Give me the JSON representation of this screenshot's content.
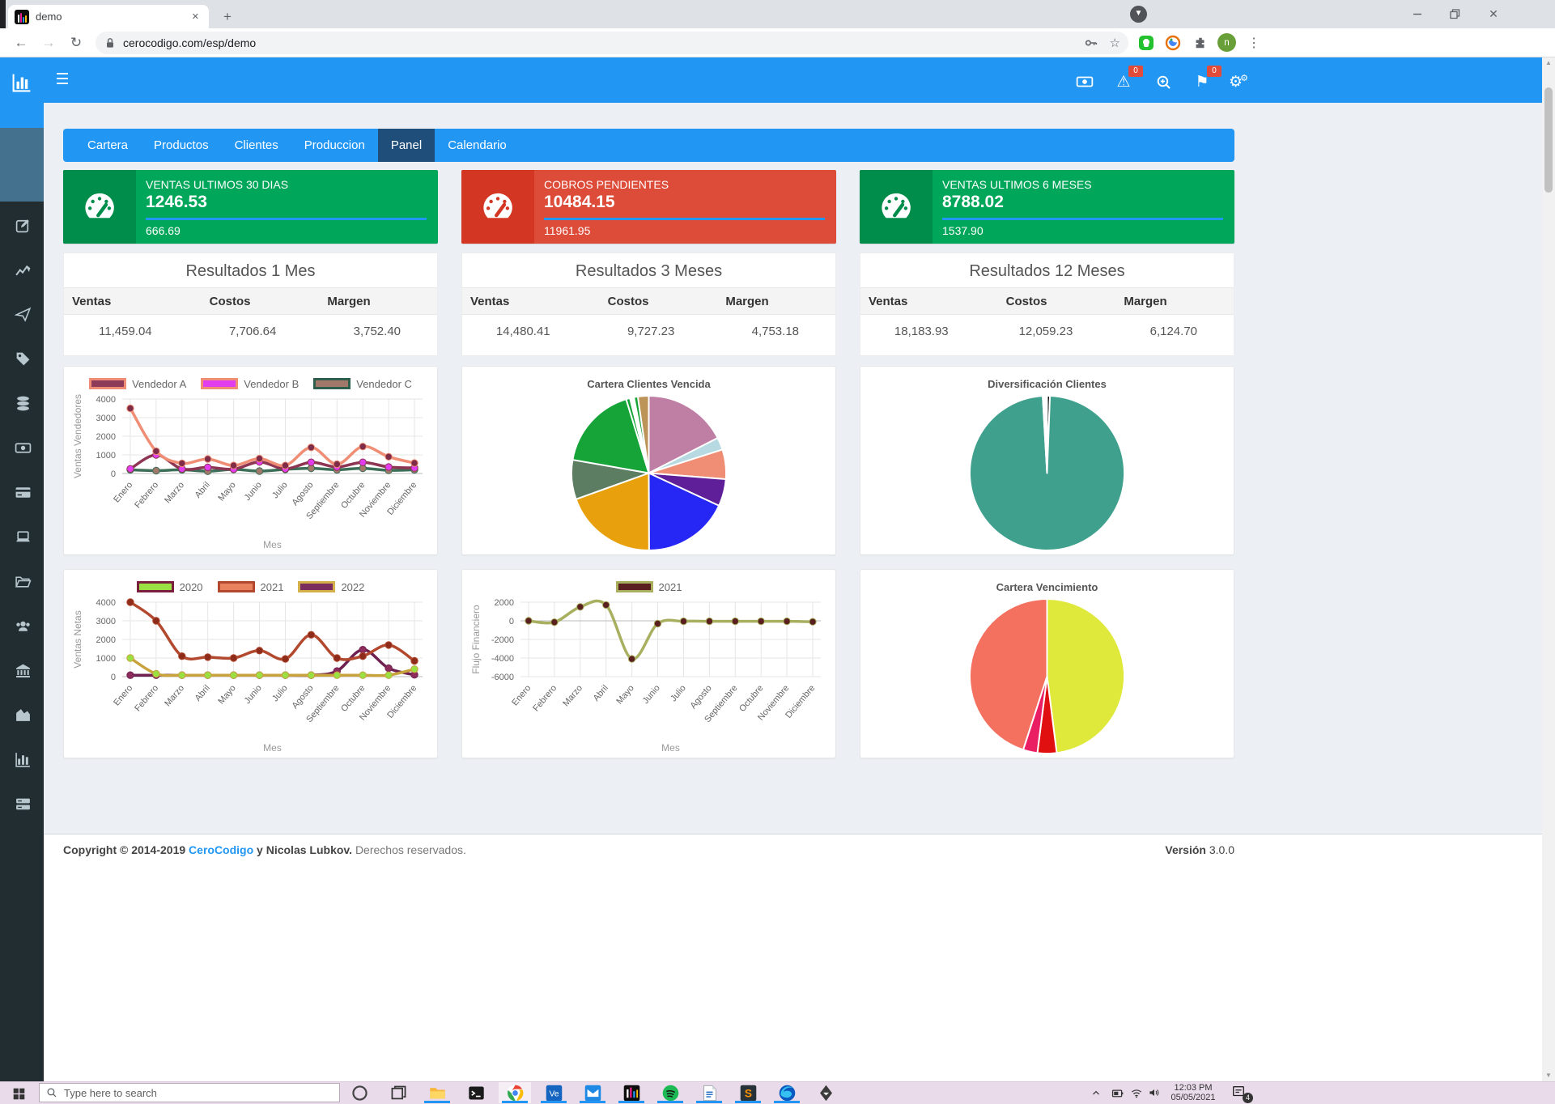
{
  "browser": {
    "tab_title": "demo",
    "url": "cerocodigo.com/esp/demo",
    "avatar_initial": "n"
  },
  "navbar": {
    "alert_badge": "0",
    "flag_badge": "0"
  },
  "nav_tabs": [
    {
      "label": "Cartera",
      "active": false
    },
    {
      "label": "Productos",
      "active": false
    },
    {
      "label": "Clientes",
      "active": false
    },
    {
      "label": "Produccion",
      "active": false
    },
    {
      "label": "Panel",
      "active": true
    },
    {
      "label": "Calendario",
      "active": false
    }
  ],
  "sidebar_icons": [
    "edit",
    "chart-line",
    "paper-plane",
    "tag",
    "database",
    "money-bill",
    "credit-card",
    "laptop",
    "folder-open",
    "users",
    "bank",
    "chart-area",
    "chart-bar",
    "server"
  ],
  "info_boxes": [
    {
      "label": "VENTAS ULTIMOS 30 DIAS",
      "value": "1246.53",
      "sub": "666.69",
      "bg": "#00a65a",
      "icon_bg": "#008d4c",
      "progress_color": "#2196f3"
    },
    {
      "label": "COBROS PENDIENTES",
      "value": "10484.15",
      "sub": "11961.95",
      "bg": "#dd4b39",
      "icon_bg": "#d33724",
      "progress_color": "#2196f3"
    },
    {
      "label": "VENTAS ULTIMOS 6 MESES",
      "value": "8788.02",
      "sub": "1537.90",
      "bg": "#00a65a",
      "icon_bg": "#008d4c",
      "progress_color": "#2196f3"
    }
  ],
  "results": [
    {
      "title": "Resultados 1 Mes",
      "headers": [
        "Ventas",
        "Costos",
        "Margen"
      ],
      "values": [
        "11,459.04",
        "7,706.64",
        "3,752.40"
      ]
    },
    {
      "title": "Resultados 3 Meses",
      "headers": [
        "Ventas",
        "Costos",
        "Margen"
      ],
      "values": [
        "14,480.41",
        "9,727.23",
        "4,753.18"
      ]
    },
    {
      "title": "Resultados 12 Meses",
      "headers": [
        "Ventas",
        "Costos",
        "Margen"
      ],
      "values": [
        "18,183.93",
        "12,059.23",
        "6,124.70"
      ]
    }
  ],
  "chart_data": [
    {
      "type": "line",
      "title": "",
      "ylabel": "Ventas Vendedores",
      "xlabel": "Mes",
      "categories": [
        "Enero",
        "Febrero",
        "Marzo",
        "Abril",
        "Mayo",
        "Junio",
        "Julio",
        "Agosto",
        "Septiembre",
        "Octubre",
        "Noviembre",
        "Diciembre"
      ],
      "ylim": [
        0,
        4000
      ],
      "yticks": [
        4000,
        3000,
        2000,
        1000,
        0
      ],
      "series": [
        {
          "name": "Vendedor A",
          "values": [
            3500,
            1200,
            550,
            780,
            430,
            800,
            430,
            1400,
            500,
            1450,
            900,
            560
          ],
          "line_color": "#ef8d75",
          "point_color": "#7e2c47",
          "legend_fill": "#8e3a59",
          "legend_border": "#ef8d75"
        },
        {
          "name": "Vendedor B",
          "values": [
            250,
            1000,
            250,
            330,
            230,
            620,
            250,
            600,
            350,
            600,
            350,
            300
          ],
          "line_color": "#8e3553",
          "point_color": "#e23ef0",
          "legend_fill": "#e23ef0",
          "legend_border": "#ef8d75"
        },
        {
          "name": "Vendedor C",
          "values": [
            200,
            150,
            200,
            120,
            220,
            130,
            220,
            280,
            200,
            280,
            170,
            200
          ],
          "line_color": "#3c6e58",
          "point_color": "#a1786a",
          "legend_fill": "#a1786a",
          "legend_border": "#2d5f4c"
        }
      ]
    },
    {
      "type": "pie",
      "title": "Cartera Clientes Vencida",
      "slices": [
        {
          "color": "#bf7fa5",
          "value": 17
        },
        {
          "color": "#b7d9e2",
          "value": 2.5
        },
        {
          "color": "#ef8d75",
          "value": 6
        },
        {
          "color": "#5e1f99",
          "value": 5.5
        },
        {
          "color": "#2626f5",
          "value": 17.5
        },
        {
          "color": "#e8a00c",
          "value": 19
        },
        {
          "color": "#5d7d62",
          "value": 8
        },
        {
          "color": "#16a438",
          "value": 17
        },
        {
          "color": "#16a438",
          "value": 0.8
        },
        {
          "color": "#ffffff",
          "value": 0.8
        },
        {
          "color": "#16a438",
          "value": 0.8
        },
        {
          "color": "#bd9458",
          "value": 2.2
        }
      ]
    },
    {
      "type": "pie",
      "title": "Diversificación Clientes",
      "slices": [
        {
          "color": "#151515",
          "value": 0.6
        },
        {
          "color": "#3fa08e",
          "value": 98.5
        },
        {
          "color": "#ffffff",
          "value": 0.9
        }
      ]
    },
    {
      "type": "line",
      "title": "",
      "ylabel": "Ventas Netas",
      "xlabel": "Mes",
      "categories": [
        "Enero",
        "Febrero",
        "Marzo",
        "Abril",
        "Mayo",
        "Junio",
        "Julio",
        "Agosto",
        "Septiembre",
        "Octubre",
        "Noviembre",
        "Diciembre"
      ],
      "ylim": [
        0,
        4000
      ],
      "yticks": [
        4000,
        3000,
        2000,
        1000,
        0
      ],
      "series": [
        {
          "name": "2020",
          "values": [
            1000,
            150,
            80,
            80,
            80,
            80,
            80,
            80,
            80,
            80,
            80,
            400
          ],
          "line_color": "#c8a23c",
          "point_color": "#9be042",
          "legend_fill": "#9be042",
          "legend_border": "#7a1f3d"
        },
        {
          "name": "2021",
          "values": [
            4000,
            3000,
            1100,
            1050,
            1000,
            1400,
            950,
            2250,
            1000,
            1100,
            1700,
            850
          ],
          "line_color": "#b2492e",
          "point_color": "#8e2c1c",
          "legend_fill": "#e8825f",
          "legend_border": "#b2492e"
        },
        {
          "name": "2022",
          "values": [
            80,
            80,
            80,
            80,
            80,
            80,
            80,
            80,
            300,
            1450,
            450,
            100
          ],
          "line_color": "#6e2150",
          "point_color": "#8e2c5c",
          "legend_fill": "#7b2d5e",
          "legend_border": "#d4b04a"
        }
      ]
    },
    {
      "type": "line",
      "title": "",
      "ylabel": "Flujo Financiero",
      "xlabel": "Mes",
      "categories": [
        "Enero",
        "Febrero",
        "Marzo",
        "Abril",
        "Mayo",
        "Junio",
        "Julio",
        "Agosto",
        "Septiembre",
        "Octubre",
        "Noviembre",
        "Diciembre"
      ],
      "ylim": [
        -6000,
        2000
      ],
      "yticks": [
        2000,
        0,
        -2000,
        -4000,
        -6000
      ],
      "series": [
        {
          "name": "2021",
          "values": [
            0,
            -150,
            1500,
            1700,
            -4100,
            -300,
            -50,
            -50,
            -50,
            -50,
            -50,
            -100
          ],
          "line_color": "#a8b060",
          "point_color": "#5a1f1f",
          "legend_fill": "#5a1f1f",
          "legend_border": "#a8b060"
        }
      ]
    },
    {
      "type": "pie",
      "title": "Cartera Vencimiento",
      "slices": [
        {
          "color": "#dfe93c",
          "value": 48
        },
        {
          "color": "#e01010",
          "value": 4
        },
        {
          "color": "#ea1f63",
          "value": 3
        },
        {
          "color": "#f4705f",
          "value": 45
        }
      ]
    }
  ],
  "footer": {
    "bold_prefix": "Copyright © 2014-2019",
    "brand": "CeroCodigo",
    "bold_suffix": "y Nicolas Lubkov.",
    "muted": "Derechos reservados.",
    "version_label": "Versión",
    "version_value": "3.0.0"
  },
  "taskbar": {
    "search_placeholder": "Type here to search",
    "time": "12:03 PM",
    "date": "05/05/2021",
    "notification_count": "4",
    "icons": [
      "cortana",
      "task-view",
      "file-explorer",
      "terminal",
      "chrome",
      "ve",
      "mail",
      "app-bars",
      "spotify",
      "word",
      "s-app",
      "edge",
      "inkscape"
    ],
    "active_icons": [
      2,
      4,
      5,
      6,
      7,
      8,
      9,
      10,
      11
    ]
  }
}
